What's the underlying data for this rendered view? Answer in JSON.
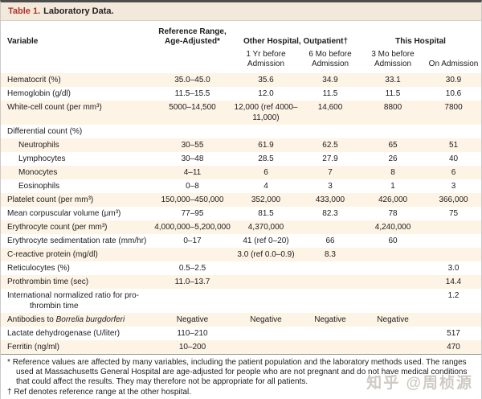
{
  "title": {
    "label": "Table 1.",
    "text": "Laboratory Data."
  },
  "header": {
    "variable": "Variable",
    "ref_range": "Reference Range,\nAge-Adjusted*",
    "group_other": "Other Hospital, Outpatient†",
    "group_this": "This Hospital",
    "sub": [
      "1 Yr before Admission",
      "6 Mo before Admission",
      "3 Mo before Admission",
      "On Admission"
    ]
  },
  "rows": [
    {
      "label": "Hematocrit (%)",
      "values": [
        "35.0–45.0",
        "35.6",
        "34.9",
        "33.1",
        "30.9"
      ]
    },
    {
      "label": "Hemoglobin (g/dl)",
      "values": [
        "11.5–15.5",
        "12.0",
        "11.5",
        "11.5",
        "10.6"
      ]
    },
    {
      "label": "White-cell count (per mm³)",
      "values": [
        "5000–14,500",
        "12,000 (ref 4000–\n11,000)",
        "14,600",
        "8800",
        "7800"
      ]
    },
    {
      "label": "Differential count (%)",
      "values": [
        "",
        "",
        "",
        "",
        ""
      ]
    },
    {
      "label": "Neutrophils",
      "indent": 1,
      "values": [
        "30–55",
        "61.9",
        "62.5",
        "65",
        "51"
      ]
    },
    {
      "label": "Lymphocytes",
      "indent": 1,
      "values": [
        "30–48",
        "28.5",
        "27.9",
        "26",
        "40"
      ]
    },
    {
      "label": "Monocytes",
      "indent": 1,
      "values": [
        "4–11",
        "6",
        "7",
        "8",
        "6"
      ]
    },
    {
      "label": "Eosinophils",
      "indent": 1,
      "values": [
        "0–8",
        "4",
        "3",
        "1",
        "3"
      ]
    },
    {
      "label": "Platelet count (per mm³)",
      "values": [
        "150,000–450,000",
        "352,000",
        "433,000",
        "426,000",
        "366,000"
      ]
    },
    {
      "label": "Mean corpuscular volume (μm³)",
      "values": [
        "77–95",
        "81.5",
        "82.3",
        "78",
        "75"
      ]
    },
    {
      "label": "Erythrocyte count (per mm³)",
      "values": [
        "4,000,000–5,200,000",
        "4,370,000",
        "",
        "4,240,000",
        ""
      ]
    },
    {
      "label": "Erythrocyte sedimentation rate (mm/hr)",
      "values": [
        "0–17",
        "41 (ref 0–20)",
        "66",
        "60",
        ""
      ]
    },
    {
      "label": "C-reactive protein (mg/dl)",
      "values": [
        "",
        "3.0 (ref 0.0–0.9)",
        "8.3",
        "",
        ""
      ]
    },
    {
      "label": "Reticulocytes (%)",
      "values": [
        "0.5–2.5",
        "",
        "",
        "",
        "3.0"
      ]
    },
    {
      "label": "Prothrombin time (sec)",
      "values": [
        "11.0–13.7",
        "",
        "",
        "",
        "14.4"
      ]
    },
    {
      "label": "International normalized ratio for pro-\nthrombin time",
      "values": [
        "",
        "",
        "",
        "",
        "1.2"
      ]
    },
    {
      "label": "Antibodies to ",
      "label_italic": "Borrelia burgdorferi",
      "values": [
        "Negative",
        "Negative",
        "Negative",
        "Negative",
        ""
      ]
    },
    {
      "label": "Lactate dehydrogenase (U/liter)",
      "values": [
        "110–210",
        "",
        "",
        "",
        "517"
      ]
    },
    {
      "label": "Ferritin (ng/ml)",
      "values": [
        "10–200",
        "",
        "",
        "",
        "470"
      ]
    }
  ],
  "footnotes": [
    {
      "marker": "*",
      "text": "Reference values are affected by many variables, including the patient population and the laboratory methods used. The ranges used at Massachusetts General Hospital are age-adjusted for people who are not pregnant and do not have medical conditions that could affect the results. They may therefore not be appropriate for all patients."
    },
    {
      "marker": "†",
      "text": "Ref denotes reference range at the other hospital."
    }
  ],
  "watermark": "知乎 @周桢源",
  "colors": {
    "title_red": "#b0322a",
    "title_bar_bg": "#f3e9da",
    "row_stripe": "#fdf4e6",
    "top_rule": "#4d4d4d",
    "side_rule": "#c9c9c9"
  }
}
